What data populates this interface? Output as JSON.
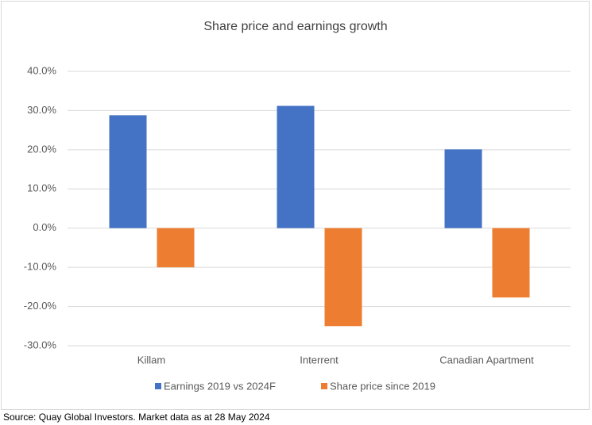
{
  "chart_data": {
    "type": "bar",
    "title": "Share price and earnings growth",
    "categories": [
      "Killam",
      "Interrent",
      "Canadian Apartment"
    ],
    "series": [
      {
        "name": "Earnings 2019 vs 2024F",
        "color": "#4472c4",
        "values": [
          28.8,
          31.2,
          20.1
        ]
      },
      {
        "name": "Share price since 2019",
        "color": "#ed7d31",
        "values": [
          -10.0,
          -25.0,
          -17.7
        ]
      }
    ],
    "ylim": [
      -30,
      40
    ],
    "yticks": [
      {
        "value": -30,
        "label": "-30.0%"
      },
      {
        "value": -20,
        "label": "-20.0%"
      },
      {
        "value": -10,
        "label": "-10.0%"
      },
      {
        "value": 0,
        "label": "0.0%"
      },
      {
        "value": 10,
        "label": "10.0%"
      },
      {
        "value": 20,
        "label": "20.0%"
      },
      {
        "value": 30,
        "label": "30.0%"
      },
      {
        "value": 40,
        "label": "40.0%"
      }
    ],
    "grid": true,
    "legend": "bottom",
    "source": "Source: Quay Global Investors. Market data as at 28 May 2024"
  }
}
